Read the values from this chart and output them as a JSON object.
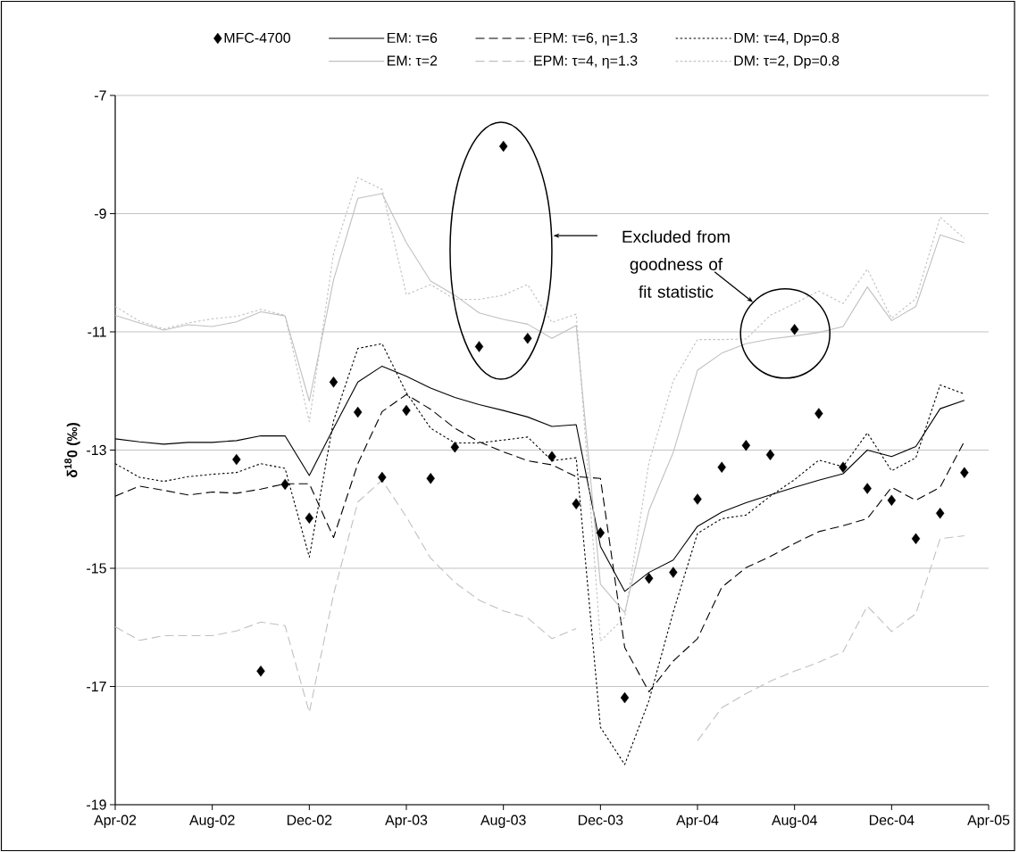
{
  "chart_data": {
    "type": "line",
    "ylabel": "δ$^{18}$0 (‰)",
    "x": [
      "2002-04",
      "2002-05",
      "2002-06",
      "2002-07",
      "2002-08",
      "2002-09",
      "2002-10",
      "2002-11",
      "2002-12",
      "2003-01",
      "2003-02",
      "2003-03",
      "2003-04",
      "2003-05",
      "2003-06",
      "2003-07",
      "2003-08",
      "2003-09",
      "2003-10",
      "2003-11",
      "2003-12",
      "2004-01",
      "2004-02",
      "2004-03",
      "2004-04",
      "2004-05",
      "2004-06",
      "2004-07",
      "2004-08",
      "2004-09",
      "2004-10",
      "2004-11",
      "2004-12",
      "2005-01",
      "2005-02",
      "2005-03"
    ],
    "xlim": [
      "2002-04",
      "2005-04"
    ],
    "xticks": [
      {
        "value": "2002-04",
        "label": "Apr-02"
      },
      {
        "value": "2002-08",
        "label": "Aug-02"
      },
      {
        "value": "2002-12",
        "label": "Dec-02"
      },
      {
        "value": "2003-04",
        "label": "Apr-03"
      },
      {
        "value": "2003-08",
        "label": "Aug-03"
      },
      {
        "value": "2003-12",
        "label": "Dec-03"
      },
      {
        "value": "2004-04",
        "label": "Apr-04"
      },
      {
        "value": "2004-08",
        "label": "Aug-04"
      },
      {
        "value": "2004-12",
        "label": "Dec-04"
      },
      {
        "value": "2005-04",
        "label": "Apr-05"
      }
    ],
    "ylim": [
      -19,
      -7
    ],
    "yticks": [
      -19,
      -17,
      -15,
      -13,
      -11,
      -9,
      -7
    ],
    "grid": "y",
    "legend": "top",
    "annotations": [
      "Excluded from goodness of fit statistic"
    ],
    "series": [
      {
        "name": "MFC-4700",
        "type": "scatter",
        "marker": "diamond",
        "color": "#000000",
        "values": [
          null,
          null,
          null,
          null,
          null,
          -13.16,
          -16.74,
          -13.58,
          -14.15,
          -11.85,
          -12.36,
          -13.46,
          -12.33,
          -13.48,
          -12.95,
          -11.25,
          -7.86,
          -11.11,
          -13.11,
          -13.91,
          -14.4,
          -17.19,
          -15.17,
          -15.07,
          -13.83,
          -13.29,
          -12.92,
          -13.08,
          -10.96,
          -12.38,
          -13.29,
          -13.65,
          -13.85,
          -14.5,
          -14.07,
          -13.38
        ]
      },
      {
        "name": "EM: τ=6",
        "line_style": "solid",
        "color": "#000000",
        "values": [
          -12.81,
          -12.86,
          -12.9,
          -12.87,
          -12.87,
          -12.84,
          -12.76,
          -12.76,
          -13.43,
          -12.63,
          -11.85,
          -11.58,
          -11.75,
          -11.95,
          -12.11,
          -12.23,
          -12.33,
          -12.44,
          -12.6,
          -12.57,
          -14.63,
          -15.39,
          -15.07,
          -14.86,
          -14.29,
          -14.05,
          -13.89,
          -13.76,
          -13.63,
          -13.51,
          -13.4,
          -13.0,
          -13.11,
          -12.94,
          -12.3,
          -12.16
        ]
      },
      {
        "name": "EPM: τ=6, η=1.3",
        "line_style": "dashed",
        "color": "#000000",
        "values": [
          -13.78,
          -13.61,
          -13.68,
          -13.76,
          -13.71,
          -13.73,
          -13.66,
          -13.57,
          -13.57,
          -14.48,
          -13.23,
          -12.35,
          -12.06,
          -12.31,
          -12.63,
          -12.86,
          -13.03,
          -13.18,
          -13.25,
          -13.45,
          -13.48,
          -16.34,
          -17.09,
          -16.57,
          -16.19,
          -15.32,
          -14.99,
          -14.8,
          -14.58,
          -14.38,
          -14.28,
          -14.16,
          -13.63,
          -13.85,
          -13.63,
          -12.85
        ]
      },
      {
        "name": "DM: τ=4, Dp=0.8",
        "line_style": "dotted",
        "color": "#000000",
        "values": [
          -13.23,
          -13.46,
          -13.53,
          -13.45,
          -13.41,
          -13.38,
          -13.23,
          -13.31,
          -14.81,
          -12.5,
          -11.28,
          -11.2,
          -12.03,
          -12.63,
          -12.88,
          -12.88,
          -12.83,
          -12.78,
          -13.18,
          -13.13,
          -17.69,
          -18.32,
          -17.24,
          -15.74,
          -14.41,
          -14.16,
          -14.1,
          -13.78,
          -13.5,
          -13.17,
          -13.28,
          -12.71,
          -13.35,
          -13.13,
          -11.9,
          -12.05
        ]
      },
      {
        "name": "EM: τ=2",
        "line_style": "solid",
        "color": "#c0c0c0",
        "values": [
          -10.72,
          -10.85,
          -10.97,
          -10.88,
          -10.91,
          -10.83,
          -10.66,
          -10.73,
          -12.17,
          -10.12,
          -8.74,
          -8.66,
          -9.49,
          -10.14,
          -10.38,
          -10.68,
          -10.79,
          -10.87,
          -11.11,
          -10.89,
          -15.27,
          -15.75,
          -14.02,
          -13.04,
          -11.65,
          -11.36,
          -11.2,
          -11.12,
          -11.07,
          -11.01,
          -10.91,
          -10.24,
          -10.81,
          -10.57,
          -9.36,
          -9.49
        ]
      },
      {
        "name": "EPM: τ=4, η=1.3",
        "line_style": "dashed",
        "color": "#c0c0c0",
        "values": [
          -15.99,
          -16.22,
          -16.14,
          -16.14,
          -16.14,
          -16.06,
          -15.91,
          -15.97,
          -17.44,
          -15.44,
          -13.88,
          -13.51,
          -14.13,
          -14.83,
          -15.24,
          -15.54,
          -15.72,
          -15.84,
          -16.19,
          -16.02,
          null,
          null,
          null,
          null,
          -17.92,
          -17.36,
          -17.12,
          -16.91,
          -16.74,
          -16.59,
          -16.41,
          -15.64,
          -16.07,
          -15.77,
          -14.5,
          -14.45
        ]
      },
      {
        "name": "DM: τ=2, Dp=0.8",
        "line_style": "dotted",
        "color": "#c0c0c0",
        "values": [
          -10.57,
          -10.82,
          -10.95,
          -10.85,
          -10.78,
          -10.74,
          -10.62,
          -10.72,
          -12.52,
          -9.67,
          -8.39,
          -8.59,
          -10.37,
          -10.2,
          -10.45,
          -10.45,
          -10.38,
          -10.2,
          -10.84,
          -10.7,
          -16.23,
          -15.83,
          -13.21,
          -11.83,
          -11.13,
          -11.13,
          -11.12,
          -10.72,
          -10.52,
          -10.31,
          -10.52,
          -9.94,
          -10.77,
          -10.44,
          -9.06,
          -9.42
        ]
      }
    ]
  }
}
